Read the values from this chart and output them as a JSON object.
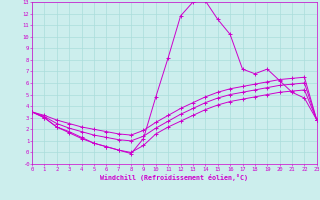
{
  "xlabel": "Windchill (Refroidissement éolien,°C)",
  "bg_color": "#cceeed",
  "grid_color": "#aadddb",
  "line_color": "#cc00cc",
  "xlim": [
    0,
    23
  ],
  "ylim": [
    -1,
    13
  ],
  "xticks": [
    0,
    1,
    2,
    3,
    4,
    5,
    6,
    7,
    8,
    9,
    10,
    11,
    12,
    13,
    14,
    15,
    16,
    17,
    18,
    19,
    20,
    21,
    22,
    23
  ],
  "yticks": [
    -1,
    0,
    1,
    2,
    3,
    4,
    5,
    6,
    7,
    8,
    9,
    10,
    11,
    12,
    13
  ],
  "ytick_labels": [
    "-0",
    "0",
    "1",
    "2",
    "3",
    "4",
    "5",
    "6",
    "7",
    "8",
    "9",
    "10",
    "11",
    "12",
    "13"
  ],
  "line1_x": [
    0,
    1,
    2,
    3,
    4,
    5,
    6,
    7,
    8,
    9,
    10,
    11,
    12,
    13,
    14,
    15,
    16,
    17,
    18,
    19,
    20,
    21,
    22,
    23
  ],
  "line1_y": [
    3.5,
    3.0,
    2.2,
    1.8,
    1.3,
    0.8,
    0.5,
    0.2,
    -0.1,
    1.2,
    4.8,
    8.2,
    11.8,
    13.0,
    13.1,
    11.5,
    10.2,
    7.2,
    6.8,
    7.2,
    6.2,
    5.2,
    4.7,
    2.8
  ],
  "line2_x": [
    0,
    1,
    2,
    3,
    4,
    5,
    6,
    7,
    8,
    9,
    10,
    11,
    12,
    13,
    14,
    15,
    16,
    17,
    18,
    19,
    20,
    21,
    22,
    23
  ],
  "line2_y": [
    3.5,
    3.2,
    2.8,
    2.5,
    2.2,
    2.0,
    1.8,
    1.6,
    1.5,
    1.9,
    2.6,
    3.2,
    3.8,
    4.3,
    4.8,
    5.2,
    5.5,
    5.7,
    5.9,
    6.1,
    6.3,
    6.4,
    6.5,
    2.8
  ],
  "line3_x": [
    0,
    1,
    2,
    3,
    4,
    5,
    6,
    7,
    8,
    9,
    10,
    11,
    12,
    13,
    14,
    15,
    16,
    17,
    18,
    19,
    20,
    21,
    22,
    23
  ],
  "line3_y": [
    3.5,
    3.1,
    2.5,
    2.1,
    1.8,
    1.5,
    1.3,
    1.1,
    1.0,
    1.4,
    2.1,
    2.7,
    3.3,
    3.8,
    4.3,
    4.7,
    5.0,
    5.2,
    5.4,
    5.6,
    5.8,
    5.9,
    6.0,
    2.8
  ],
  "line4_x": [
    0,
    1,
    2,
    3,
    4,
    5,
    6,
    7,
    8,
    9,
    10,
    11,
    12,
    13,
    14,
    15,
    16,
    17,
    18,
    19,
    20,
    21,
    22,
    23
  ],
  "line4_y": [
    3.5,
    3.0,
    2.2,
    1.7,
    1.2,
    0.8,
    0.5,
    0.2,
    0.0,
    0.6,
    1.6,
    2.2,
    2.7,
    3.2,
    3.7,
    4.1,
    4.4,
    4.6,
    4.8,
    5.0,
    5.2,
    5.3,
    5.4,
    2.8
  ]
}
